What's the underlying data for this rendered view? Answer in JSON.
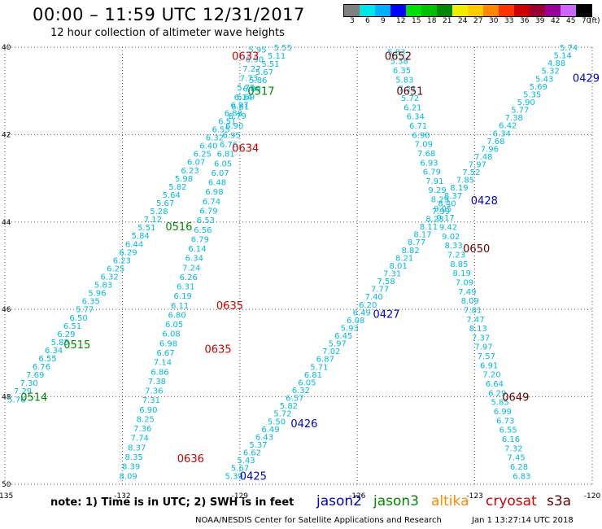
{
  "header": {
    "title": "00:00 – 11:59 UTC 12/31/2017",
    "subtitle": "12 hour collection of altimeter wave heights"
  },
  "legend": {
    "colors": [
      "#808080",
      "#00e5e5",
      "#00b0ff",
      "#0000ff",
      "#00e000",
      "#00c000",
      "#008800",
      "#eeee00",
      "#ffcc00",
      "#ff8800",
      "#ff3300",
      "#cc0000",
      "#990033",
      "#990099",
      "#cc66ff",
      "#000000"
    ],
    "labels": [
      "3",
      "6",
      "9",
      "12",
      "15",
      "18",
      "21",
      "24",
      "27",
      "30",
      "33",
      "36",
      "39",
      "42",
      "45",
      "70",
      "(ft)"
    ]
  },
  "colors": {
    "jason2": "#0000cc",
    "jason3": "#008800",
    "altika": "#ff8800",
    "cryosat": "#cc0000",
    "s3a": "#660000",
    "swh": "#00bbdd",
    "grid": "#555555"
  },
  "map_data": {
    "lon_ticks": [
      "-135",
      "-132",
      "-129",
      "-126",
      "-123",
      "-120"
    ],
    "lat_ticks": [
      "40",
      "42",
      "44",
      "46",
      "48",
      "50"
    ],
    "tracks": [
      {
        "color": "s3a",
        "lat0": 40.05,
        "lon0": -128.55,
        "lat1": 49.8,
        "lon1": -131.85,
        "values": [
          "5.95",
          "6.90",
          "7.27",
          "7.73",
          "5.75",
          "6.14",
          "6.61",
          "6.79",
          "6.90",
          "6.95",
          "6.76",
          "6.81",
          "6.05",
          "6.07",
          "6.48",
          "6.98",
          "6.74",
          "6.79",
          "6.53",
          "6.56",
          "6.79",
          "6.14",
          "6.34",
          "7.24",
          "6.26",
          "6.31",
          "6.19",
          "6.11",
          "6.80",
          "6.05",
          "6.08",
          "6.98",
          "6.67",
          "7.14",
          "6.86",
          "7.38",
          "7.36",
          "7.31",
          "6.90",
          "8.25",
          "7.36",
          "7.74",
          "8.37",
          "8.35",
          "8.39",
          "8.09"
        ],
        "labels": [
          {
            "t": "0633",
            "lat": 40.2,
            "lon": -129.2,
            "color": "cryosat"
          },
          {
            "t": "0634",
            "lat": 42.3,
            "lon": -129.2,
            "color": "cryosat"
          },
          {
            "t": "0635",
            "lat": 45.9,
            "lon": -129.6,
            "color": "cryosat"
          },
          {
            "t": "0635",
            "lat": 46.9,
            "lon": -129.9,
            "color": "cryosat"
          },
          {
            "t": "0636",
            "lat": 49.4,
            "lon": -130.6,
            "color": "cryosat"
          }
        ]
      },
      {
        "color": "j3",
        "lat0": 40.0,
        "lon0": -127.9,
        "lat1": 48.05,
        "lon1": -134.7,
        "values": [
          "5.55",
          "5.11",
          "5.51",
          "5.67",
          "5.86",
          "6.09",
          "6.69",
          "6.97",
          "6.88",
          "6.51",
          "6.55",
          "6.32",
          "6.40",
          "6.25",
          "6.07",
          "6.23",
          "5.98",
          "5.82",
          "5.64",
          "5.67",
          "5.28",
          "7.12",
          "5.51",
          "5.84",
          "6.44",
          "6.29",
          "6.23",
          "6.25",
          "6.32",
          "5.83",
          "5.96",
          "6.35",
          "5.77",
          "6.50",
          "6.51",
          "6.29",
          "5.85",
          "6.34",
          "6.55",
          "6.76",
          "7.69",
          "7.30",
          "7.29",
          "5.76"
        ],
        "labels": [
          {
            "t": "0517",
            "lat": 41.0,
            "lon": -128.8,
            "color": "jason3"
          },
          {
            "t": "0516",
            "lat": 44.1,
            "lon": -130.9,
            "color": "jason3"
          },
          {
            "t": "0515",
            "lat": 46.8,
            "lon": -133.5,
            "color": "jason3"
          },
          {
            "t": "0514",
            "lat": 48.0,
            "lon": -134.6,
            "color": "jason3"
          }
        ]
      },
      {
        "color": "s3a",
        "lat0": 40.1,
        "lon0": -125.0,
        "lat1": 49.8,
        "lon1": -121.8,
        "values": [
          "5.83",
          "5.38",
          "6.35",
          "5.83",
          "7.21",
          "5.72",
          "6.21",
          "6.34",
          "6.71",
          "6.90",
          "7.09",
          "7.68",
          "6.93",
          "6.79",
          "7.91",
          "9.29",
          "8.29",
          "9.05",
          "9.17",
          "9.42",
          "9.02",
          "8.33",
          "7.23",
          "8.85",
          "8.19",
          "7.09",
          "7.49",
          "8.09",
          "7.81",
          "7.47",
          "8.13",
          "7.37",
          "7.97",
          "7.57",
          "6.91",
          "7.20",
          "6.64",
          "6.29",
          "5.85",
          "6.99",
          "6.73",
          "6.55",
          "6.16",
          "7.32",
          "7.45",
          "6.28",
          "6.83"
        ],
        "labels": [
          {
            "t": "0652",
            "lat": 40.2,
            "lon": -125.3,
            "color": "s3a"
          },
          {
            "t": "0651",
            "lat": 41.0,
            "lon": -125.0,
            "color": "s3a"
          },
          {
            "t": "0650",
            "lat": 44.6,
            "lon": -123.3,
            "color": "s3a"
          },
          {
            "t": "0649",
            "lat": 48.0,
            "lon": -122.3,
            "color": "s3a"
          }
        ]
      },
      {
        "color": "j2",
        "lat0": 40.0,
        "lon0": -120.6,
        "lat1": 49.8,
        "lon1": -129.15,
        "values": [
          "5.74",
          "5.14",
          "4.88",
          "5.32",
          "5.43",
          "5.69",
          "5.35",
          "5.90",
          "5.77",
          "7.38",
          "6.42",
          "6.34",
          "7.68",
          "7.96",
          "7.48",
          "7.97",
          "7.52",
          "7.85",
          "8.19",
          "8.37",
          "8.40",
          "7.99",
          "8.23",
          "8.11",
          "8.17",
          "8.77",
          "8.82",
          "8.21",
          "8.01",
          "7.31",
          "7.58",
          "7.77",
          "7.40",
          "6.20",
          "6.49",
          "6.08",
          "5.93",
          "6.45",
          "5.97",
          "7.02",
          "6.87",
          "5.71",
          "6.81",
          "6.05",
          "6.32",
          "6.57",
          "5.82",
          "5.72",
          "5.50",
          "6.49",
          "6.43",
          "5.37",
          "6.62",
          "5.43",
          "5.67",
          "5.39"
        ],
        "labels": [
          {
            "t": "0429",
            "lat": 40.7,
            "lon": -120.5,
            "color": "jason2"
          },
          {
            "t": "0428",
            "lat": 43.5,
            "lon": -123.1,
            "color": "jason2"
          },
          {
            "t": "0427",
            "lat": 46.1,
            "lon": -125.6,
            "color": "jason2"
          },
          {
            "t": "0426",
            "lat": 48.6,
            "lon": -127.7,
            "color": "jason2"
          },
          {
            "t": "0425",
            "lat": 49.8,
            "lon": -129.0,
            "color": "jason2"
          }
        ]
      }
    ]
  },
  "footer": {
    "note": "note: 1) Time is in UTC; 2) SWH is in feet",
    "satellites": {
      "jason2": "jason2",
      "jason3": "jason3",
      "altika": "altika",
      "cryosat": "cryosat",
      "s3a": "s3a"
    },
    "credit": "NOAA/NESDIS Center for Satellite Applications and Research",
    "timestamp": "Jan  1 13:27:14 UTC 2018"
  }
}
